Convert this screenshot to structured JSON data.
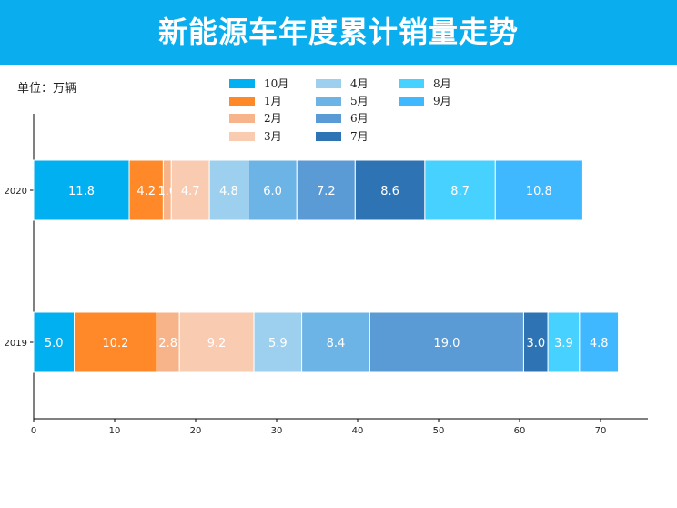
{
  "header": {
    "title": "新能源车年度累计销量走势"
  },
  "unit_label": "单位：万辆",
  "chart_data": {
    "type": "bar",
    "orientation": "horizontal",
    "stacked": true,
    "title": "新能源车年度累计销量走势",
    "xlabel": "",
    "ylabel": "",
    "xlim": [
      0,
      76
    ],
    "xticks": [
      0,
      10,
      20,
      30,
      40,
      50,
      60,
      70
    ],
    "categories": [
      "2020",
      "2019"
    ],
    "legend_placement": "top-center",
    "grid": false,
    "series": [
      {
        "name": "10月",
        "color": "#00b0f0",
        "values": [
          11.8,
          5.0
        ]
      },
      {
        "name": "1月",
        "color": "#ff8828",
        "values": [
          4.2,
          10.2
        ]
      },
      {
        "name": "2月",
        "color": "#f7b48a",
        "values": [
          1.0,
          2.8
        ]
      },
      {
        "name": "3月",
        "color": "#f9cbb0",
        "values": [
          4.7,
          9.2
        ]
      },
      {
        "name": "4月",
        "color": "#9dd0ee",
        "values": [
          4.8,
          5.9
        ]
      },
      {
        "name": "5月",
        "color": "#6cb4e6",
        "values": [
          6.0,
          8.4
        ]
      },
      {
        "name": "6月",
        "color": "#5b9bd5",
        "values": [
          7.2,
          19.0
        ]
      },
      {
        "name": "7月",
        "color": "#2e74b5",
        "values": [
          8.6,
          3.0
        ]
      },
      {
        "name": "8月",
        "color": "#47d1ff",
        "values": [
          8.7,
          3.9
        ]
      },
      {
        "name": "9月",
        "color": "#40b8ff",
        "values": [
          10.8,
          4.8
        ]
      }
    ]
  }
}
